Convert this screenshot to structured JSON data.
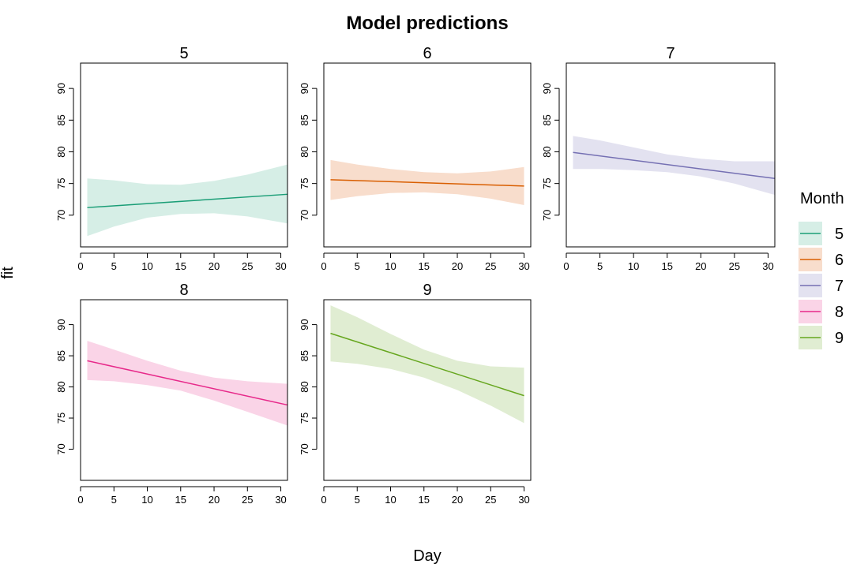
{
  "chart_data": {
    "type": "line",
    "title": "Model predictions",
    "xlabel": "Day",
    "ylabel": "fit",
    "xlim": [
      0,
      31
    ],
    "ylim": [
      65,
      94
    ],
    "x_ticks": [
      0,
      5,
      10,
      15,
      20,
      25,
      30
    ],
    "y_ticks": [
      70,
      75,
      80,
      85,
      90
    ],
    "legend": {
      "title": "Month",
      "placement": "right"
    },
    "series": [
      {
        "name": "5",
        "color": "#1B9E77",
        "fill": "#D6EEE6",
        "x_range": [
          1,
          31
        ],
        "fit": [
          71.2,
          73.3
        ],
        "lower": [
          [
            1,
            66.7
          ],
          [
            5,
            68.2
          ],
          [
            10,
            69.6
          ],
          [
            15,
            70.2
          ],
          [
            20,
            70.3
          ],
          [
            25,
            69.8
          ],
          [
            31,
            68.7
          ]
        ],
        "upper": [
          [
            1,
            75.8
          ],
          [
            5,
            75.5
          ],
          [
            10,
            74.9
          ],
          [
            15,
            74.8
          ],
          [
            20,
            75.4
          ],
          [
            25,
            76.4
          ],
          [
            31,
            78.0
          ]
        ]
      },
      {
        "name": "6",
        "color": "#D95F02",
        "fill": "#F8DDCC",
        "x_range": [
          1,
          30
        ],
        "fit": [
          75.6,
          74.6
        ],
        "lower": [
          [
            1,
            72.4
          ],
          [
            5,
            73.0
          ],
          [
            10,
            73.5
          ],
          [
            15,
            73.6
          ],
          [
            20,
            73.3
          ],
          [
            25,
            72.6
          ],
          [
            30,
            71.6
          ]
        ],
        "upper": [
          [
            1,
            78.7
          ],
          [
            5,
            78.0
          ],
          [
            10,
            77.3
          ],
          [
            15,
            76.8
          ],
          [
            20,
            76.6
          ],
          [
            25,
            76.9
          ],
          [
            30,
            77.6
          ]
        ]
      },
      {
        "name": "7",
        "color": "#7570B3",
        "fill": "#E3E2F0",
        "x_range": [
          1,
          31
        ],
        "fit": [
          79.9,
          75.8
        ],
        "lower": [
          [
            1,
            77.3
          ],
          [
            5,
            77.3
          ],
          [
            10,
            77.1
          ],
          [
            15,
            76.8
          ],
          [
            20,
            76.1
          ],
          [
            25,
            75.0
          ],
          [
            31,
            73.2
          ]
        ],
        "upper": [
          [
            1,
            82.5
          ],
          [
            5,
            81.8
          ],
          [
            10,
            80.7
          ],
          [
            15,
            79.6
          ],
          [
            20,
            78.9
          ],
          [
            25,
            78.5
          ],
          [
            31,
            78.5
          ]
        ]
      },
      {
        "name": "8",
        "color": "#E7298A",
        "fill": "#FAD4E7",
        "x_range": [
          1,
          31
        ],
        "fit": [
          84.2,
          77.1
        ],
        "lower": [
          [
            1,
            81.1
          ],
          [
            5,
            80.9
          ],
          [
            10,
            80.3
          ],
          [
            15,
            79.4
          ],
          [
            20,
            77.8
          ],
          [
            25,
            76.0
          ],
          [
            31,
            73.8
          ]
        ],
        "upper": [
          [
            1,
            87.4
          ],
          [
            5,
            86.0
          ],
          [
            10,
            84.2
          ],
          [
            15,
            82.6
          ],
          [
            20,
            81.5
          ],
          [
            25,
            80.9
          ],
          [
            31,
            80.5
          ]
        ]
      },
      {
        "name": "9",
        "color": "#66A61E",
        "fill": "#E0EDD2",
        "x_range": [
          1,
          30
        ],
        "fit": [
          88.6,
          78.6
        ],
        "lower": [
          [
            1,
            84.1
          ],
          [
            5,
            83.7
          ],
          [
            10,
            82.9
          ],
          [
            15,
            81.5
          ],
          [
            20,
            79.5
          ],
          [
            25,
            77.0
          ],
          [
            30,
            74.2
          ]
        ],
        "upper": [
          [
            1,
            93.1
          ],
          [
            5,
            91.2
          ],
          [
            10,
            88.5
          ],
          [
            15,
            86.0
          ],
          [
            20,
            84.2
          ],
          [
            25,
            83.3
          ],
          [
            30,
            83.1
          ]
        ]
      }
    ]
  }
}
